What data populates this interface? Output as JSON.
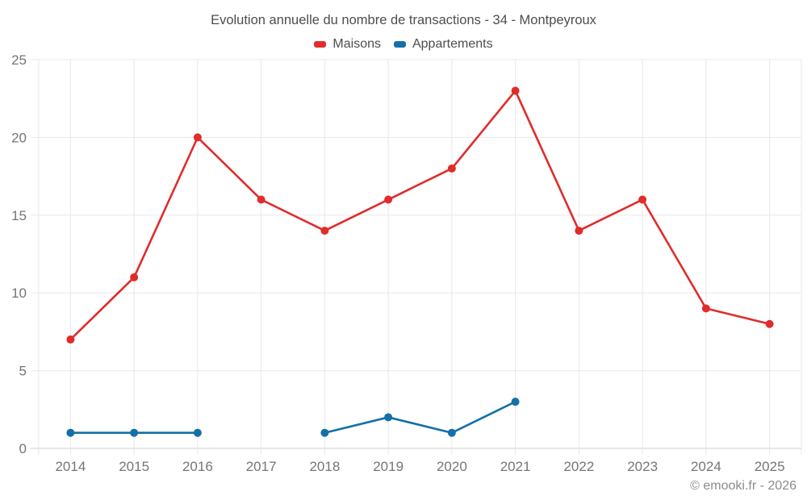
{
  "chart_data": {
    "type": "line",
    "title": "Evolution annuelle du nombre de transactions - 34 - Montpeyroux",
    "categories": [
      "2014",
      "2015",
      "2016",
      "2017",
      "2018",
      "2019",
      "2020",
      "2021",
      "2022",
      "2023",
      "2024",
      "2025"
    ],
    "series": [
      {
        "name": "Maisons",
        "color": "#e02c2c",
        "values": [
          7,
          11,
          20,
          16,
          14,
          16,
          18,
          23,
          14,
          16,
          9,
          8
        ]
      },
      {
        "name": "Appartements",
        "color": "#1470a6",
        "values": [
          1,
          1,
          1,
          null,
          1,
          2,
          1,
          3,
          null,
          null,
          null,
          null
        ]
      }
    ],
    "xlabel": "",
    "ylabel": "",
    "ylim": [
      0,
      25
    ],
    "yticks": [
      0,
      5,
      10,
      15,
      20,
      25
    ],
    "grid": true,
    "legend_position": "top"
  },
  "footer": {
    "credit": "© emooki.fr - 2026"
  },
  "theme": {
    "background": "#ffffff",
    "title_color": "#4d4d4d",
    "axis_label_color": "#757575",
    "grid_color": "#e8e8e8",
    "axis_line_color": "#cfcfcf",
    "footer_color": "#8c8c8c"
  }
}
